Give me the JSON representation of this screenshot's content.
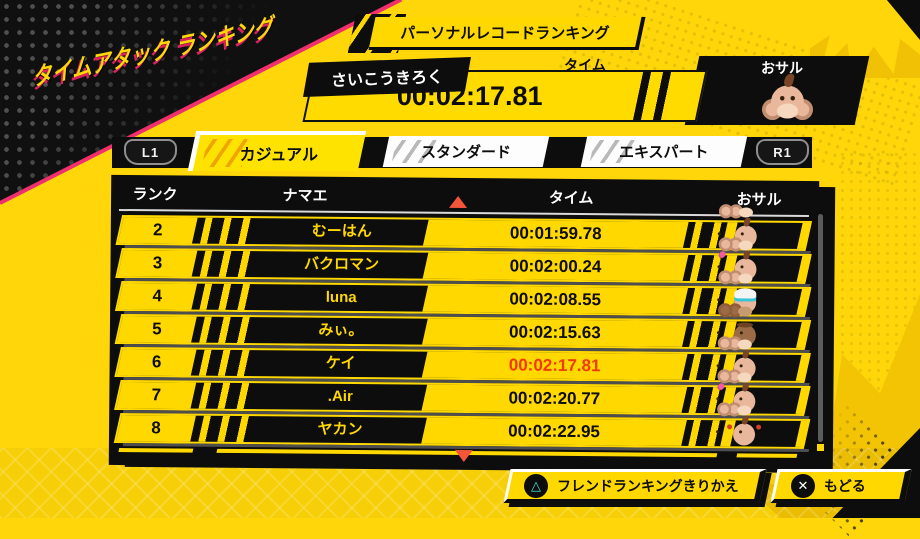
{
  "page_title": "タイムアタック ランキング",
  "personal": {
    "banner_label": "パーソナルレコードランキング",
    "best_label": "さいこうきろく",
    "time_header": "タイム",
    "time_value": "00:02:17.81",
    "monkey_header": "おサル",
    "monkey": "aiai"
  },
  "tabs": {
    "l1_label": "L1",
    "r1_label": "R1",
    "items": [
      {
        "label": "カジュアル",
        "active": true
      },
      {
        "label": "スタンダード",
        "active": false
      },
      {
        "label": "エキスパート",
        "active": false
      }
    ]
  },
  "table": {
    "headers": {
      "rank": "ランク",
      "name": "ナマエ",
      "time": "タイム",
      "monkey": "おサル"
    },
    "rows": [
      {
        "rank": "2",
        "name": "むーはん",
        "time": "00:01:59.78",
        "monkey": "aiai",
        "highlight": false
      },
      {
        "rank": "3",
        "name": "バクロマン",
        "time": "00:02:00.24",
        "monkey": "meemee",
        "highlight": false
      },
      {
        "rank": "4",
        "name": "luna",
        "time": "00:02:08.55",
        "monkey": "baby",
        "highlight": false
      },
      {
        "rank": "5",
        "name": "みぃ。",
        "time": "00:02:15.63",
        "monkey": "gongon",
        "highlight": false
      },
      {
        "rank": "6",
        "name": "ケイ",
        "time": "00:02:17.81",
        "monkey": "aiai",
        "highlight": true
      },
      {
        "rank": "7",
        "name": ".Air",
        "time": "00:02:20.77",
        "monkey": "meemee",
        "highlight": false
      },
      {
        "rank": "8",
        "name": "ヤカン",
        "time": "00:02:22.95",
        "monkey": "yanyan",
        "highlight": false
      }
    ]
  },
  "footer": {
    "triangle_hint": {
      "glyph": "△",
      "label": "フレンドランキングきりかえ"
    },
    "cross_hint": {
      "glyph": "✕",
      "label": "もどる"
    }
  },
  "colors": {
    "background_yellow": "#ffd60a",
    "cell_yellow": "#ffd800",
    "panel_black": "#0d0d0d",
    "highlight_red": "#f23a00",
    "scroll_arrow": "#f3553b",
    "magenta_accent": "#ef2f6e",
    "triangle_teal": "#3fe0cd"
  }
}
